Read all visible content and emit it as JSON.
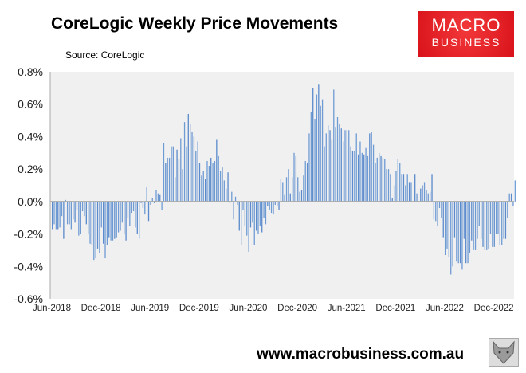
{
  "chart_data": {
    "type": "bar",
    "title": "CoreLogic Weekly Price Movements",
    "subtitle": "Source: CoreLogic",
    "ylim": [
      -0.6,
      0.8
    ],
    "yticks": [
      "0.8%",
      "0.6%",
      "0.4%",
      "0.2%",
      "0.0%",
      "-0.2%",
      "-0.4%",
      "-0.6%"
    ],
    "xtick_labels": [
      "Jun-2018",
      "Dec-2018",
      "Jun-2019",
      "Dec-2019",
      "Jun-2020",
      "Dec-2020",
      "Jun-2021",
      "Dec-2021",
      "Jun-2022",
      "Dec-2022"
    ],
    "x_range": [
      "Jun-2018",
      "Feb-2023"
    ],
    "frequency": "weekly",
    "unit": "%",
    "grid": false,
    "bar_color": "#6f9bd4",
    "plot_background": "#f0f0f0",
    "values": [
      -0.17,
      -0.14,
      -0.17,
      -0.17,
      -0.16,
      -0.09,
      -0.23,
      0.01,
      -0.14,
      -0.14,
      -0.17,
      -0.11,
      -0.13,
      -0.05,
      -0.21,
      -0.2,
      -0.06,
      -0.09,
      -0.14,
      -0.2,
      -0.26,
      -0.27,
      -0.36,
      -0.35,
      -0.29,
      -0.32,
      -0.16,
      -0.26,
      -0.35,
      -0.27,
      -0.22,
      -0.24,
      -0.24,
      -0.23,
      -0.22,
      -0.19,
      -0.18,
      -0.13,
      -0.2,
      -0.24,
      -0.1,
      -0.15,
      -0.07,
      -0.06,
      -0.16,
      -0.2,
      -0.23,
      -0.01,
      -0.04,
      -0.08,
      0.09,
      -0.12,
      -0.02,
      0.02,
      -0.01,
      0.07,
      0.05,
      0.04,
      -0.05,
      0.36,
      0.24,
      0.27,
      0.27,
      0.34,
      0.34,
      0.15,
      0.32,
      0.26,
      0.39,
      0.2,
      0.49,
      0.34,
      0.54,
      0.48,
      0.43,
      0.4,
      0.31,
      0.37,
      0.24,
      0.16,
      0.19,
      0.14,
      0.25,
      0.22,
      0.27,
      0.24,
      0.25,
      0.38,
      0.28,
      0.19,
      0.21,
      0.13,
      0.08,
      0.18,
      -0.01,
      0.06,
      -0.11,
      0.03,
      -0.02,
      -0.18,
      -0.27,
      -0.05,
      -0.15,
      -0.21,
      -0.31,
      -0.16,
      -0.13,
      -0.27,
      -0.18,
      -0.2,
      -0.15,
      -0.19,
      -0.1,
      -0.14,
      -0.03,
      -0.05,
      -0.07,
      -0.08,
      -0.02,
      -0.03,
      -0.05,
      0.14,
      0.12,
      0.04,
      0.15,
      0.2,
      0.05,
      0.15,
      0.3,
      0.28,
      0.15,
      0.06,
      0.07,
      0.16,
      0.25,
      0.24,
      0.42,
      0.55,
      0.7,
      0.51,
      0.66,
      0.72,
      0.59,
      0.63,
      0.34,
      0.42,
      0.47,
      0.44,
      0.38,
      0.69,
      0.46,
      0.52,
      0.48,
      0.45,
      0.37,
      0.44,
      0.44,
      0.44,
      0.34,
      0.31,
      0.31,
      0.42,
      0.29,
      0.37,
      0.3,
      0.29,
      0.33,
      0.28,
      0.42,
      0.43,
      0.35,
      0.24,
      0.27,
      0.3,
      0.28,
      0.27,
      0.26,
      0.2,
      0.2,
      0.17,
      0.02,
      0.1,
      0.19,
      0.26,
      0.24,
      0.17,
      0.17,
      0.1,
      0.17,
      0.12,
      0.12,
      0.0,
      0.17,
      0.05,
      0.0,
      0.08,
      0.1,
      0.12,
      0.07,
      0.05,
      0.06,
      0.17,
      -0.11,
      -0.12,
      -0.15,
      -0.04,
      -0.1,
      -0.22,
      -0.33,
      -0.29,
      -0.34,
      -0.45,
      -0.4,
      -0.22,
      -0.37,
      -0.38,
      -0.38,
      -0.42,
      -0.23,
      -0.38,
      -0.38,
      -0.32,
      -0.24,
      -0.3,
      -0.3,
      -0.23,
      -0.15,
      -0.23,
      -0.28,
      -0.3,
      -0.3,
      -0.29,
      -0.2,
      -0.28,
      -0.28,
      -0.2,
      -0.2,
      -0.27,
      -0.27,
      -0.23,
      -0.23,
      -0.1,
      0.05,
      0.05,
      -0.03,
      0.13
    ]
  },
  "logo": {
    "line1": "MACRO",
    "line2": "BUSINESS",
    "color": "#e01f26"
  },
  "footer": {
    "url": "www.macrobusiness.com.au"
  }
}
